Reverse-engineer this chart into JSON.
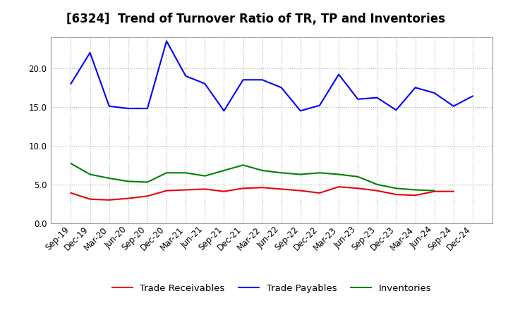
{
  "title": "[6324]  Trend of Turnover Ratio of TR, TP and Inventories",
  "x_labels": [
    "Sep-19",
    "Dec-19",
    "Mar-20",
    "Jun-20",
    "Sep-20",
    "Dec-20",
    "Mar-21",
    "Jun-21",
    "Sep-21",
    "Dec-21",
    "Mar-22",
    "Jun-22",
    "Sep-22",
    "Dec-22",
    "Mar-23",
    "Jun-23",
    "Sep-23",
    "Dec-23",
    "Mar-24",
    "Jun-24",
    "Sep-24",
    "Dec-24"
  ],
  "trade_receivables": [
    3.9,
    3.1,
    3.0,
    3.2,
    3.5,
    4.2,
    4.3,
    4.4,
    4.1,
    4.5,
    4.6,
    4.4,
    4.2,
    3.9,
    4.7,
    4.5,
    4.2,
    3.7,
    3.6,
    4.1,
    4.1,
    null
  ],
  "trade_payables": [
    18.0,
    22.0,
    15.1,
    14.8,
    14.8,
    23.5,
    19.0,
    18.0,
    14.5,
    18.5,
    18.5,
    17.5,
    14.5,
    15.2,
    19.2,
    16.0,
    16.2,
    14.6,
    17.5,
    16.8,
    15.1,
    16.4
  ],
  "inventories": [
    7.7,
    6.3,
    5.8,
    5.4,
    5.3,
    6.5,
    6.5,
    6.1,
    6.8,
    7.5,
    6.8,
    6.5,
    6.3,
    6.5,
    6.3,
    6.0,
    5.0,
    4.5,
    4.3,
    4.2,
    null,
    null
  ],
  "tr_color": "#e8000d",
  "tp_color": "#0000ff",
  "inv_color": "#008000",
  "ylim": [
    0,
    24.0
  ],
  "yticks": [
    0.0,
    5.0,
    10.0,
    15.0,
    20.0
  ],
  "legend_labels": [
    "Trade Receivables",
    "Trade Payables",
    "Inventories"
  ],
  "background_color": "#ffffff",
  "plot_bg_color": "#ffffff",
  "grid_color": "#b0b0b0",
  "title_fontsize": 12,
  "axis_fontsize": 8.5,
  "legend_fontsize": 9.5,
  "linewidth": 1.5
}
